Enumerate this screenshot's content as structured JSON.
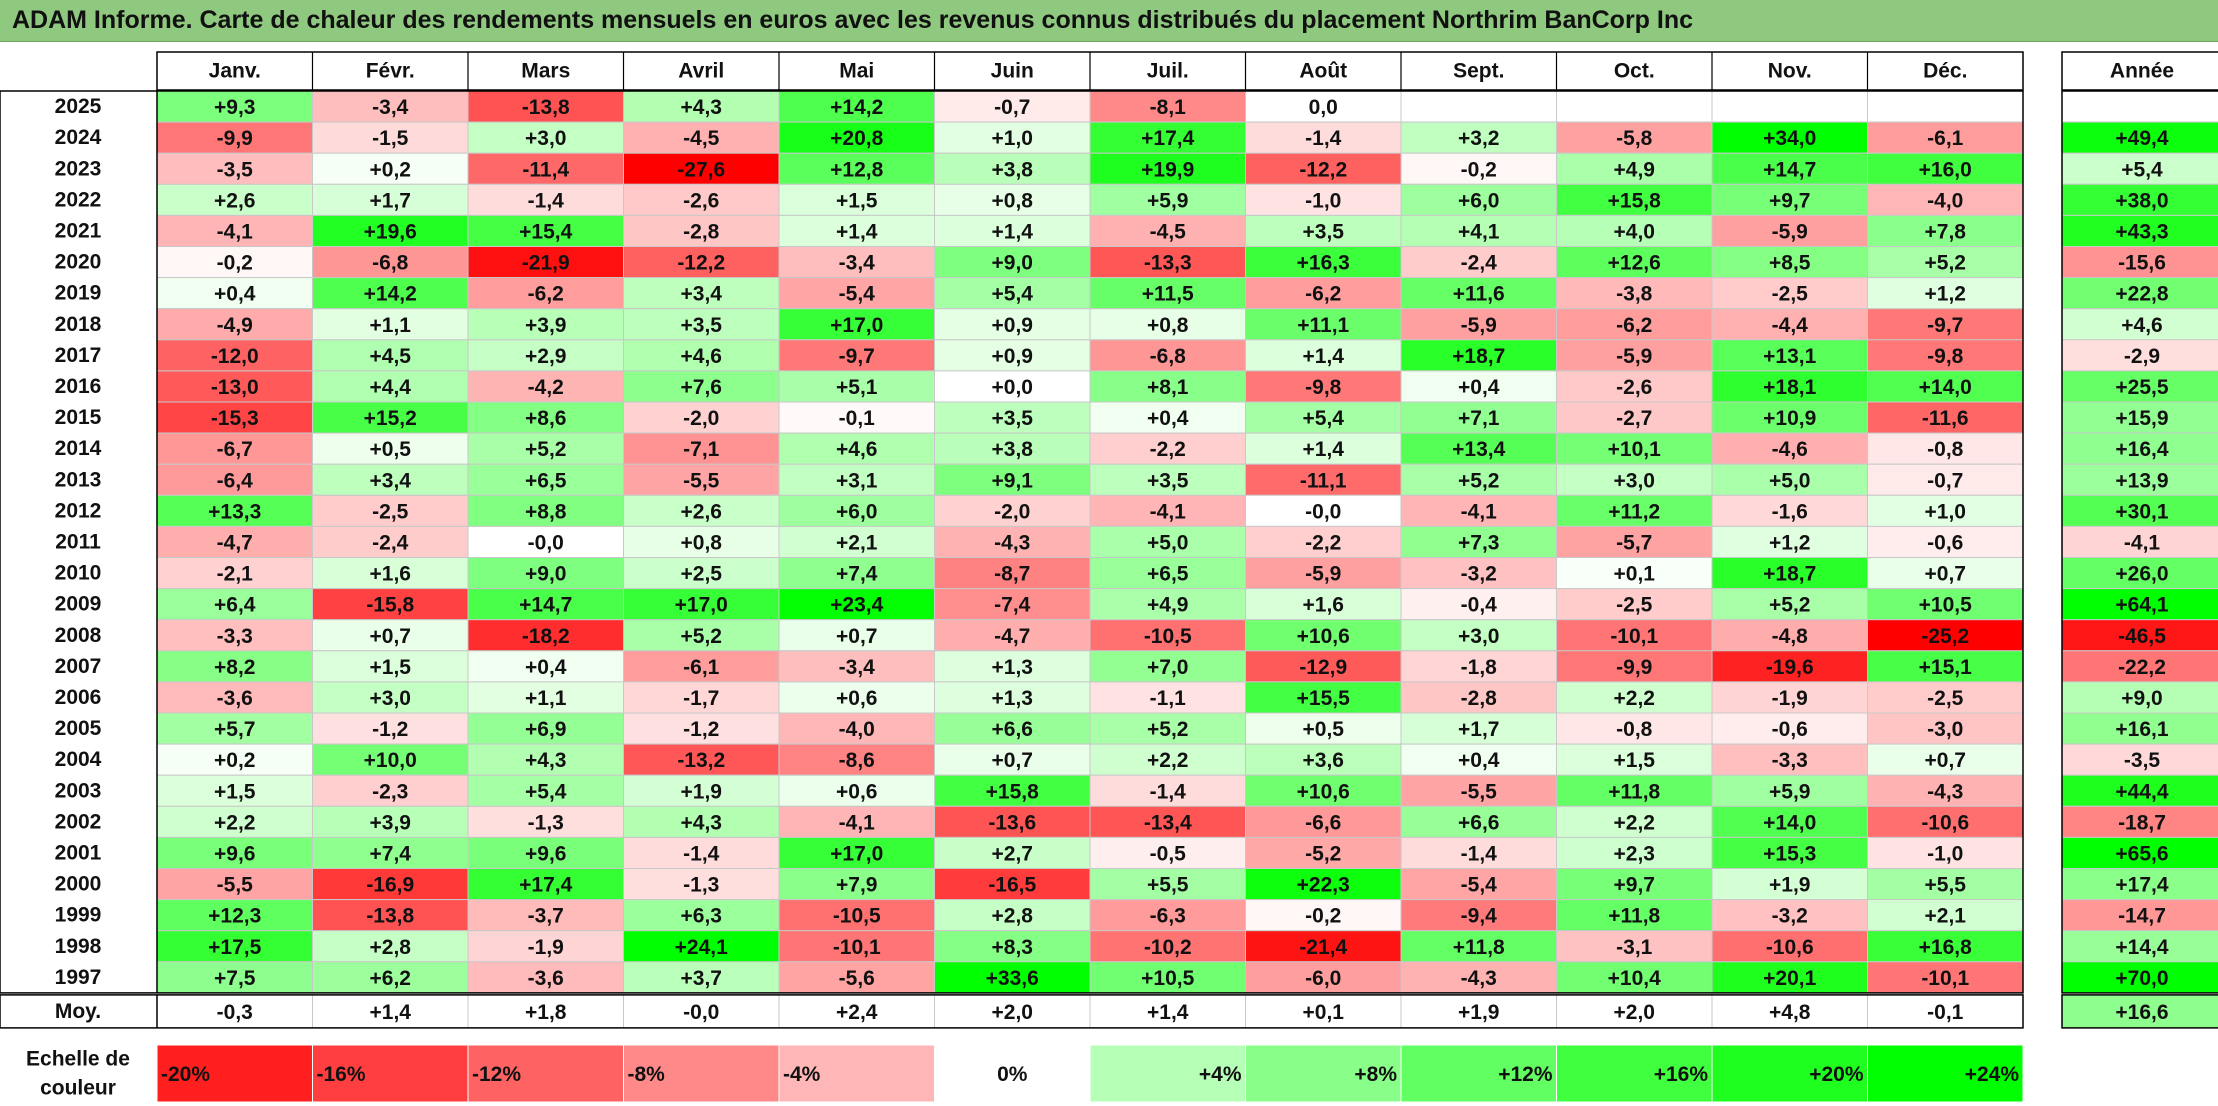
{
  "title": "ADAM Informe. Carte de chaleur des rendements mensuels en euros avec les revenus connus distribués du placement Northrim BanCorp Inc",
  "chart_data": {
    "type": "heatmap",
    "title": "ADAM Informe. Carte de chaleur des rendements mensuels en euros avec les revenus connus distribués du placement Northrim BanCorp Inc",
    "columns": [
      "Janv.",
      "Févr.",
      "Mars",
      "Avril",
      "Mai",
      "Juin",
      "Juil.",
      "Août",
      "Sept.",
      "Oct.",
      "Nov.",
      "Déc."
    ],
    "year_column": "Année",
    "rows": [
      {
        "year": "2025",
        "months": [
          "+9,3",
          "-3,4",
          "-13,8",
          "+4,3",
          "+14,2",
          "-0,7",
          "-8,1",
          "0,0",
          "",
          "",
          "",
          ""
        ],
        "annual": ""
      },
      {
        "year": "2024",
        "months": [
          "-9,9",
          "-1,5",
          "+3,0",
          "-4,5",
          "+20,8",
          "+1,0",
          "+17,4",
          "-1,4",
          "+3,2",
          "-5,8",
          "+34,0",
          "-6,1"
        ],
        "annual": "+49,4"
      },
      {
        "year": "2023",
        "months": [
          "-3,5",
          "+0,2",
          "-11,4",
          "-27,6",
          "+12,8",
          "+3,8",
          "+19,9",
          "-12,2",
          "-0,2",
          "+4,9",
          "+14,7",
          "+16,0"
        ],
        "annual": "+5,4"
      },
      {
        "year": "2022",
        "months": [
          "+2,6",
          "+1,7",
          "-1,4",
          "-2,6",
          "+1,5",
          "+0,8",
          "+5,9",
          "-1,0",
          "+6,0",
          "+15,8",
          "+9,7",
          "-4,0"
        ],
        "annual": "+38,0"
      },
      {
        "year": "2021",
        "months": [
          "-4,1",
          "+19,6",
          "+15,4",
          "-2,8",
          "+1,4",
          "+1,4",
          "-4,5",
          "+3,5",
          "+4,1",
          "+4,0",
          "-5,9",
          "+7,8"
        ],
        "annual": "+43,3"
      },
      {
        "year": "2020",
        "months": [
          "-0,2",
          "-6,8",
          "-21,9",
          "-12,2",
          "-3,4",
          "+9,0",
          "-13,3",
          "+16,3",
          "-2,4",
          "+12,6",
          "+8,5",
          "+5,2"
        ],
        "annual": "-15,6"
      },
      {
        "year": "2019",
        "months": [
          "+0,4",
          "+14,2",
          "-6,2",
          "+3,4",
          "-5,4",
          "+5,4",
          "+11,5",
          "-6,2",
          "+11,6",
          "-3,8",
          "-2,5",
          "+1,2"
        ],
        "annual": "+22,8"
      },
      {
        "year": "2018",
        "months": [
          "-4,9",
          "+1,1",
          "+3,9",
          "+3,5",
          "+17,0",
          "+0,9",
          "+0,8",
          "+11,1",
          "-5,9",
          "-6,2",
          "-4,4",
          "-9,7"
        ],
        "annual": "+4,6"
      },
      {
        "year": "2017",
        "months": [
          "-12,0",
          "+4,5",
          "+2,9",
          "+4,6",
          "-9,7",
          "+0,9",
          "-6,8",
          "+1,4",
          "+18,7",
          "-5,9",
          "+13,1",
          "-9,8"
        ],
        "annual": "-2,9"
      },
      {
        "year": "2016",
        "months": [
          "-13,0",
          "+4,4",
          "-4,2",
          "+7,6",
          "+5,1",
          "+0,0",
          "+8,1",
          "-9,8",
          "+0,4",
          "-2,6",
          "+18,1",
          "+14,0"
        ],
        "annual": "+25,5"
      },
      {
        "year": "2015",
        "months": [
          "-15,3",
          "+15,2",
          "+8,6",
          "-2,0",
          "-0,1",
          "+3,5",
          "+0,4",
          "+5,4",
          "+7,1",
          "-2,7",
          "+10,9",
          "-11,6"
        ],
        "annual": "+15,9"
      },
      {
        "year": "2014",
        "months": [
          "-6,7",
          "+0,5",
          "+5,2",
          "-7,1",
          "+4,6",
          "+3,8",
          "-2,2",
          "+1,4",
          "+13,4",
          "+10,1",
          "-4,6",
          "-0,8"
        ],
        "annual": "+16,4"
      },
      {
        "year": "2013",
        "months": [
          "-6,4",
          "+3,4",
          "+6,5",
          "-5,5",
          "+3,1",
          "+9,1",
          "+3,5",
          "-11,1",
          "+5,2",
          "+3,0",
          "+5,0",
          "-0,7"
        ],
        "annual": "+13,9"
      },
      {
        "year": "2012",
        "months": [
          "+13,3",
          "-2,5",
          "+8,8",
          "+2,6",
          "+6,0",
          "-2,0",
          "-4,1",
          "-0,0",
          "-4,1",
          "+11,2",
          "-1,6",
          "+1,0"
        ],
        "annual": "+30,1"
      },
      {
        "year": "2011",
        "months": [
          "-4,7",
          "-2,4",
          "-0,0",
          "+0,8",
          "+2,1",
          "-4,3",
          "+5,0",
          "-2,2",
          "+7,3",
          "-5,7",
          "+1,2",
          "-0,6"
        ],
        "annual": "-4,1"
      },
      {
        "year": "2010",
        "months": [
          "-2,1",
          "+1,6",
          "+9,0",
          "+2,5",
          "+7,4",
          "-8,7",
          "+6,5",
          "-5,9",
          "-3,2",
          "+0,1",
          "+18,7",
          "+0,7"
        ],
        "annual": "+26,0"
      },
      {
        "year": "2009",
        "months": [
          "+6,4",
          "-15,8",
          "+14,7",
          "+17,0",
          "+23,4",
          "-7,4",
          "+4,9",
          "+1,6",
          "-0,4",
          "-2,5",
          "+5,2",
          "+10,5"
        ],
        "annual": "+64,1"
      },
      {
        "year": "2008",
        "months": [
          "-3,3",
          "+0,7",
          "-18,2",
          "+5,2",
          "+0,7",
          "-4,7",
          "-10,5",
          "+10,6",
          "+3,0",
          "-10,1",
          "-4,8",
          "-25,2"
        ],
        "annual": "-46,5"
      },
      {
        "year": "2007",
        "months": [
          "+8,2",
          "+1,5",
          "+0,4",
          "-6,1",
          "-3,4",
          "+1,3",
          "+7,0",
          "-12,9",
          "-1,8",
          "-9,9",
          "-19,6",
          "+15,1"
        ],
        "annual": "-22,2"
      },
      {
        "year": "2006",
        "months": [
          "-3,6",
          "+3,0",
          "+1,1",
          "-1,7",
          "+0,6",
          "+1,3",
          "-1,1",
          "+15,5",
          "-2,8",
          "+2,2",
          "-1,9",
          "-2,5"
        ],
        "annual": "+9,0"
      },
      {
        "year": "2005",
        "months": [
          "+5,7",
          "-1,2",
          "+6,9",
          "-1,2",
          "-4,0",
          "+6,6",
          "+5,2",
          "+0,5",
          "+1,7",
          "-0,8",
          "-0,6",
          "-3,0"
        ],
        "annual": "+16,1"
      },
      {
        "year": "2004",
        "months": [
          "+0,2",
          "+10,0",
          "+4,3",
          "-13,2",
          "-8,6",
          "+0,7",
          "+2,2",
          "+3,6",
          "+0,4",
          "+1,5",
          "-3,3",
          "+0,7"
        ],
        "annual": "-3,5"
      },
      {
        "year": "2003",
        "months": [
          "+1,5",
          "-2,3",
          "+5,4",
          "+1,9",
          "+0,6",
          "+15,8",
          "-1,4",
          "+10,6",
          "-5,5",
          "+11,8",
          "+5,9",
          "-4,3"
        ],
        "annual": "+44,4"
      },
      {
        "year": "2002",
        "months": [
          "+2,2",
          "+3,9",
          "-1,3",
          "+4,3",
          "-4,1",
          "-13,6",
          "-13,4",
          "-6,6",
          "+6,6",
          "+2,2",
          "+14,0",
          "-10,6"
        ],
        "annual": "-18,7"
      },
      {
        "year": "2001",
        "months": [
          "+9,6",
          "+7,4",
          "+9,6",
          "-1,4",
          "+17,0",
          "+2,7",
          "-0,5",
          "-5,2",
          "-1,4",
          "+2,3",
          "+15,3",
          "-1,0"
        ],
        "annual": "+65,6"
      },
      {
        "year": "2000",
        "months": [
          "-5,5",
          "-16,9",
          "+17,4",
          "-1,3",
          "+7,9",
          "-16,5",
          "+5,5",
          "+22,3",
          "-5,4",
          "+9,7",
          "+1,9",
          "+5,5"
        ],
        "annual": "+17,4"
      },
      {
        "year": "1999",
        "months": [
          "+12,3",
          "-13,8",
          "-3,7",
          "+6,3",
          "-10,5",
          "+2,8",
          "-6,3",
          "-0,2",
          "-9,4",
          "+11,8",
          "-3,2",
          "+2,1"
        ],
        "annual": "-14,7"
      },
      {
        "year": "1998",
        "months": [
          "+17,5",
          "+2,8",
          "-1,9",
          "+24,1",
          "-10,1",
          "+8,3",
          "-10,2",
          "-21,4",
          "+11,8",
          "-3,1",
          "-10,6",
          "+16,8"
        ],
        "annual": "+14,4"
      },
      {
        "year": "1997",
        "months": [
          "+7,5",
          "+6,2",
          "-3,6",
          "+3,7",
          "-5,6",
          "+33,6",
          "+10,5",
          "-6,0",
          "-4,3",
          "+10,4",
          "+20,1",
          "-10,1"
        ],
        "annual": "+70,0"
      }
    ],
    "average": {
      "label": "Moy.",
      "months": [
        "-0,3",
        "+1,4",
        "+1,8",
        "-0,0",
        "+2,4",
        "+2,0",
        "+1,4",
        "+0,1",
        "+1,9",
        "+2,0",
        "+4,8",
        "-0,1"
      ],
      "annual": "+16,6"
    },
    "scale": {
      "label_line1": "Echelle de",
      "label_line2": "couleur",
      "steps": [
        "-20%",
        "-16%",
        "-12%",
        "-8%",
        "-4%",
        "0%",
        "+4%",
        "+8%",
        "+12%",
        "+16%",
        "+20%",
        "+24%"
      ]
    },
    "colors": {
      "negative_max": "#ff0000",
      "neutral": "#ffffff",
      "positive_max": "#00ff00",
      "title_bar": "#8fc97f",
      "grid": "#c8c8c8",
      "frame": "#000000"
    }
  }
}
